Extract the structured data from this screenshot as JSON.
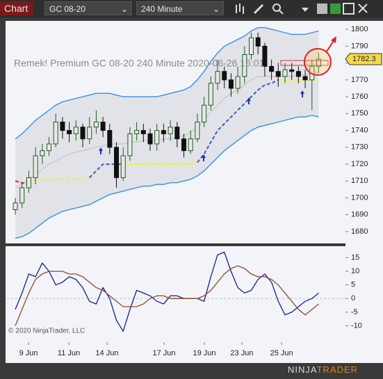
{
  "toolbar": {
    "button": "Chart",
    "instrument": "GC 08-20",
    "interval": "240 Minute"
  },
  "watermark": "© 2020 NinjaTrader, LLC",
  "logo": {
    "first": "NINJA",
    "second": "TRADER"
  },
  "chart_data": [
    {
      "type": "candlestick",
      "title": "Remek!  Premium  GC 08-20  240 Minute  2020-06-26 16:01",
      "open": [
        1693,
        1697,
        1706,
        1712,
        1725,
        1728,
        1732,
        1745,
        1740,
        1738,
        1742,
        1735,
        1742,
        1745,
        1740,
        1730,
        1712,
        1725,
        1738,
        1740,
        1738,
        1732,
        1740,
        1738,
        1742,
        1735,
        1728,
        1735,
        1745,
        1755,
        1768,
        1775,
        1770,
        1765,
        1772,
        1785,
        1795,
        1790,
        1778,
        1775,
        1772,
        1776,
        1775,
        1772,
        1770,
        1778
      ],
      "high": [
        1700,
        1709,
        1716,
        1730,
        1732,
        1736,
        1750,
        1748,
        1745,
        1746,
        1744,
        1748,
        1752,
        1748,
        1744,
        1733,
        1730,
        1742,
        1745,
        1744,
        1741,
        1744,
        1744,
        1746,
        1745,
        1738,
        1740,
        1750,
        1760,
        1772,
        1782,
        1778,
        1774,
        1778,
        1790,
        1798,
        1798,
        1792,
        1782,
        1780,
        1780,
        1780,
        1778,
        1776,
        1782,
        1786
      ],
      "low": [
        1690,
        1694,
        1703,
        1708,
        1720,
        1725,
        1730,
        1735,
        1733,
        1734,
        1730,
        1732,
        1738,
        1736,
        1726,
        1706,
        1710,
        1722,
        1734,
        1733,
        1728,
        1728,
        1733,
        1734,
        1730,
        1724,
        1726,
        1733,
        1742,
        1752,
        1764,
        1765,
        1760,
        1762,
        1768,
        1782,
        1785,
        1772,
        1770,
        1766,
        1768,
        1770,
        1768,
        1765,
        1752,
        1774
      ],
      "close": [
        1697,
        1706,
        1712,
        1725,
        1728,
        1732,
        1745,
        1740,
        1738,
        1742,
        1735,
        1742,
        1745,
        1740,
        1730,
        1712,
        1725,
        1738,
        1740,
        1738,
        1732,
        1740,
        1738,
        1742,
        1735,
        1728,
        1735,
        1745,
        1755,
        1768,
        1775,
        1770,
        1765,
        1772,
        1785,
        1795,
        1790,
        1778,
        1775,
        1772,
        1776,
        1775,
        1772,
        1770,
        1778,
        1782.3
      ],
      "up_color": "#1f5a1f",
      "down_color": "#111111",
      "lines": [
        {
          "color": "#3a8ee6",
          "values": [
            1735,
            1738,
            1742,
            1746,
            1749,
            1752,
            1755,
            1757,
            1758,
            1759,
            1760,
            1761,
            1762,
            1762,
            1762,
            1761,
            1760,
            1760,
            1760,
            1760,
            1760,
            1760,
            1761,
            1762,
            1763,
            1764,
            1766,
            1770,
            1775,
            1781,
            1786,
            1790,
            1792,
            1794,
            1796,
            1799,
            1801,
            1801,
            1800,
            1799,
            1798,
            1797,
            1797,
            1797,
            1798,
            1799
          ]
        },
        {
          "color": "#3a8ee6",
          "values": [
            1676,
            1677,
            1679,
            1682,
            1685,
            1688,
            1690,
            1692,
            1693,
            1694,
            1695,
            1696,
            1698,
            1700,
            1702,
            1703,
            1704,
            1705,
            1706,
            1707,
            1707,
            1708,
            1708,
            1709,
            1709,
            1710,
            1711,
            1713,
            1716,
            1720,
            1724,
            1728,
            1731,
            1734,
            1737,
            1740,
            1742,
            1743,
            1744,
            1745,
            1746,
            1747,
            1748,
            1748,
            1749,
            1748
          ]
        },
        {
          "color": "#c8c8c8",
          "values": [
            1706,
            1708,
            1711,
            1714,
            1717,
            1720,
            1722,
            1724,
            1726,
            1727,
            1728,
            1729,
            1730,
            1731,
            1732,
            1732,
            1732,
            1733,
            1733,
            1734,
            1734,
            1734,
            1735,
            1735,
            1736,
            1737,
            1739,
            1742,
            1746,
            1751,
            1755,
            1759,
            1762,
            1764,
            1767,
            1770,
            1772,
            1772,
            1772,
            1772,
            1772,
            1772,
            1773,
            1773,
            1774,
            1774
          ]
        },
        {
          "color": "#d9202a",
          "dashed": true,
          "values": [
            1710,
            1709,
            1708,
            null,
            null,
            null,
            null,
            null,
            null,
            null,
            null,
            null,
            null,
            null,
            null,
            null,
            null,
            null,
            null,
            null,
            null,
            null,
            null,
            null,
            null,
            null,
            null,
            null,
            null,
            null,
            null,
            null,
            null,
            null,
            null,
            null,
            null,
            null,
            null,
            null,
            null,
            null,
            null,
            null,
            null,
            null
          ]
        },
        {
          "color": "#f5f500",
          "dashed": true,
          "values": [
            null,
            null,
            1708,
            1711,
            1711,
            1711,
            1711,
            1711,
            1711,
            1711,
            1711,
            1712,
            null,
            null,
            null,
            null,
            1720,
            1720,
            1720,
            1720,
            1720,
            1720,
            1720,
            1720,
            1720,
            1720,
            1720,
            1721,
            null,
            null,
            null,
            null,
            null,
            null,
            null,
            null,
            null,
            null,
            null,
            1770,
            1770,
            1770,
            1770,
            1770,
            1770,
            1770
          ]
        },
        {
          "color": "#2f5fd0",
          "dashed": true,
          "values": [
            null,
            null,
            null,
            null,
            null,
            null,
            null,
            null,
            null,
            null,
            null,
            1712,
            1716,
            1720,
            1720,
            1720,
            1720,
            null,
            null,
            null,
            null,
            null,
            null,
            null,
            null,
            null,
            null,
            1721,
            1726,
            1733,
            1740,
            1744,
            1748,
            1752,
            1756,
            1760,
            1764,
            1767,
            1768,
            1770,
            null,
            null,
            null,
            null,
            null,
            null
          ]
        }
      ],
      "ylim": [
        1673,
        1805
      ],
      "yticks": [
        1680,
        1690,
        1700,
        1710,
        1720,
        1730,
        1740,
        1750,
        1760,
        1770,
        1780,
        1790,
        1800
      ]
    },
    {
      "type": "line",
      "series": [
        {
          "color": "#1c1c8c",
          "values": [
            -4,
            2,
            9,
            8,
            13,
            10,
            5,
            6,
            8,
            7,
            4,
            -1,
            -2,
            4,
            0,
            -8,
            -12,
            -4,
            3,
            2,
            1,
            -1,
            -2,
            1,
            1,
            0,
            0,
            0,
            -1,
            8,
            16,
            17,
            10,
            4,
            2,
            3,
            7,
            9,
            6,
            -1,
            -6,
            -5,
            -3,
            -1,
            0,
            2
          ]
        },
        {
          "color": "#8b4a2b",
          "values": [
            -10,
            -4,
            2,
            7,
            9,
            10,
            10,
            10,
            9,
            9,
            8,
            6,
            4,
            3,
            1,
            -1,
            -3,
            -3,
            -3,
            -2,
            0,
            1,
            1,
            0,
            0,
            0,
            0,
            0,
            1,
            3,
            6,
            9,
            11,
            12,
            11,
            9,
            8,
            8,
            7,
            5,
            2,
            -1,
            -4,
            -6,
            -4,
            -2
          ]
        }
      ],
      "ylim": [
        -16,
        19.2
      ],
      "yticks": [
        -10,
        -5,
        0,
        5,
        10,
        15
      ],
      "xlim": [
        -1.24,
        48.97
      ],
      "xticks": [
        {
          "value": 1.96,
          "label": "9 Jun"
        },
        {
          "value": 7.94,
          "label": "11 Jun"
        },
        {
          "value": 13.6,
          "label": "14 Jun"
        },
        {
          "value": 22.06,
          "label": "17 Jun"
        },
        {
          "value": 28.04,
          "label": "19 Jun"
        },
        {
          "value": 33.6,
          "label": "23 Jun"
        },
        {
          "value": 39.5,
          "label": "25 Jun"
        }
      ]
    }
  ]
}
